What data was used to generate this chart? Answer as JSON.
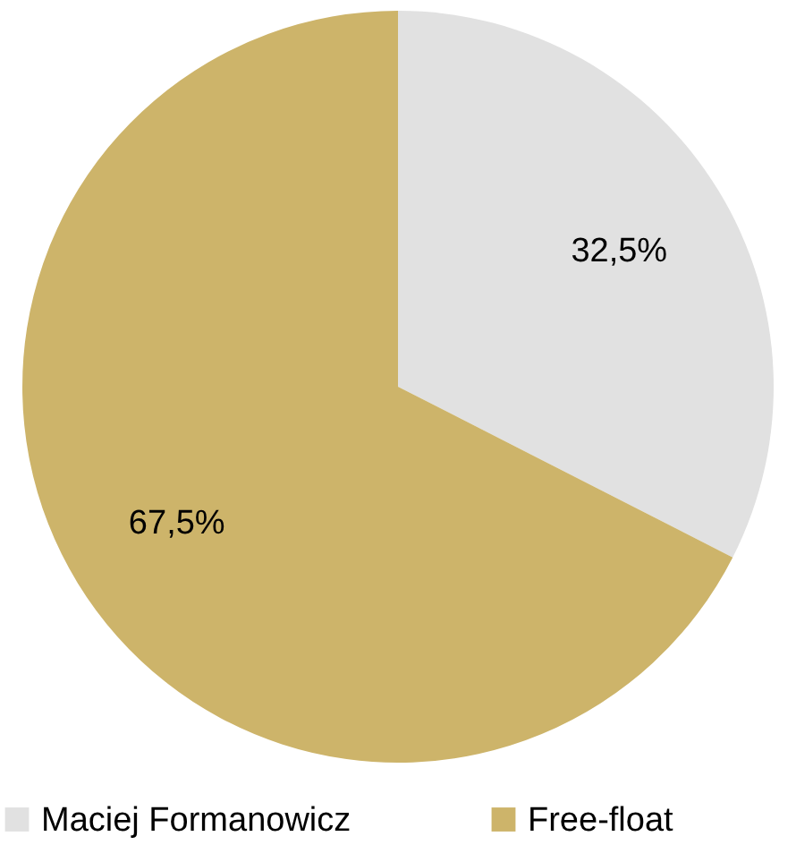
{
  "chart_data": {
    "type": "pie",
    "categories": [
      "Maciej Formanowicz",
      "Free-float"
    ],
    "values": [
      32.5,
      67.5
    ],
    "colors": [
      "#e1e1e1",
      "#cdb46a"
    ],
    "value_labels": [
      "32,5%",
      "67,5%"
    ],
    "legend": "bottom"
  }
}
